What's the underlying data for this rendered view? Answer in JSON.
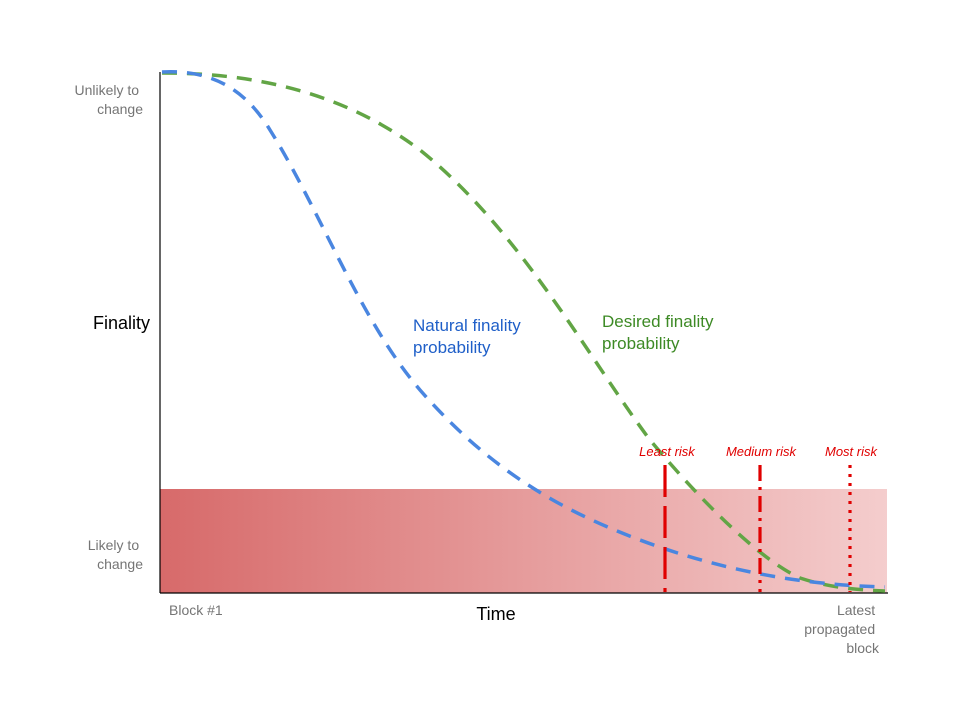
{
  "y_axis": {
    "title": "Finality",
    "top_label": [
      "Unlikely to",
      "change"
    ],
    "bottom_label": [
      "Likely to",
      "change"
    ]
  },
  "x_axis": {
    "title": "Time",
    "start_label": "Block #1",
    "end_label": [
      "Latest",
      "propagated",
      "block"
    ]
  },
  "curves": {
    "natural": {
      "label": [
        "Natural finality",
        "probability"
      ],
      "color": "#4a86e0"
    },
    "desired": {
      "label": [
        "Desired finality",
        "probability"
      ],
      "color": "#62a545"
    }
  },
  "risk_zone": {
    "color_dark": "#d76a6a",
    "color_light": "#f4cdcd"
  },
  "risk_markers": [
    {
      "label": "Least risk",
      "style": "dashed"
    },
    {
      "label": "Medium risk",
      "style": "dash-dot"
    },
    {
      "label": "Most risk",
      "style": "dotted"
    }
  ],
  "colors": {
    "risk_marker": "#e00000"
  }
}
